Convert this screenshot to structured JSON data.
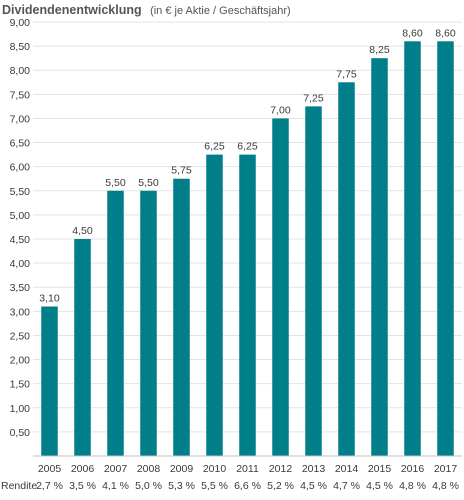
{
  "chart_data": {
    "type": "bar",
    "title": "Dividendenentwicklung",
    "subtitle": "(in € je Aktie / Geschäftsjahr)",
    "categories": [
      "2005",
      "2006",
      "2007",
      "2008",
      "2009",
      "2010",
      "2011",
      "2012",
      "2013",
      "2014",
      "2015",
      "2016",
      "2017"
    ],
    "values": [
      3.1,
      4.5,
      5.5,
      5.5,
      5.75,
      6.25,
      6.25,
      7.0,
      7.25,
      7.75,
      8.25,
      8.6,
      8.6
    ],
    "value_labels": [
      "3,10",
      "4,50",
      "5,50",
      "5,50",
      "5,75",
      "6,25",
      "6,25",
      "7,00",
      "7,25",
      "7,75",
      "8,25",
      "8,60",
      "8,60"
    ],
    "yticks": [
      "0,50",
      "1,00",
      "1,50",
      "2,00",
      "2,50",
      "3,00",
      "3,50",
      "4,00",
      "4,50",
      "5,00",
      "5,50",
      "6,00",
      "6,50",
      "7,00",
      "7,50",
      "8,00",
      "8,50",
      "9,00"
    ],
    "ylim": [
      0,
      9
    ],
    "grid": true,
    "bar_color": "#007f8b",
    "rendite_label": "Rendite",
    "rendite": [
      "2,7 %",
      "3,5 %",
      "4,1 %",
      "5,0 %",
      "5,3 %",
      "5,5 %",
      "6,6 %",
      "5,2 %",
      "4,5 %",
      "4,7 %",
      "4,5 %",
      "4,8 %",
      "4,8 %"
    ]
  }
}
